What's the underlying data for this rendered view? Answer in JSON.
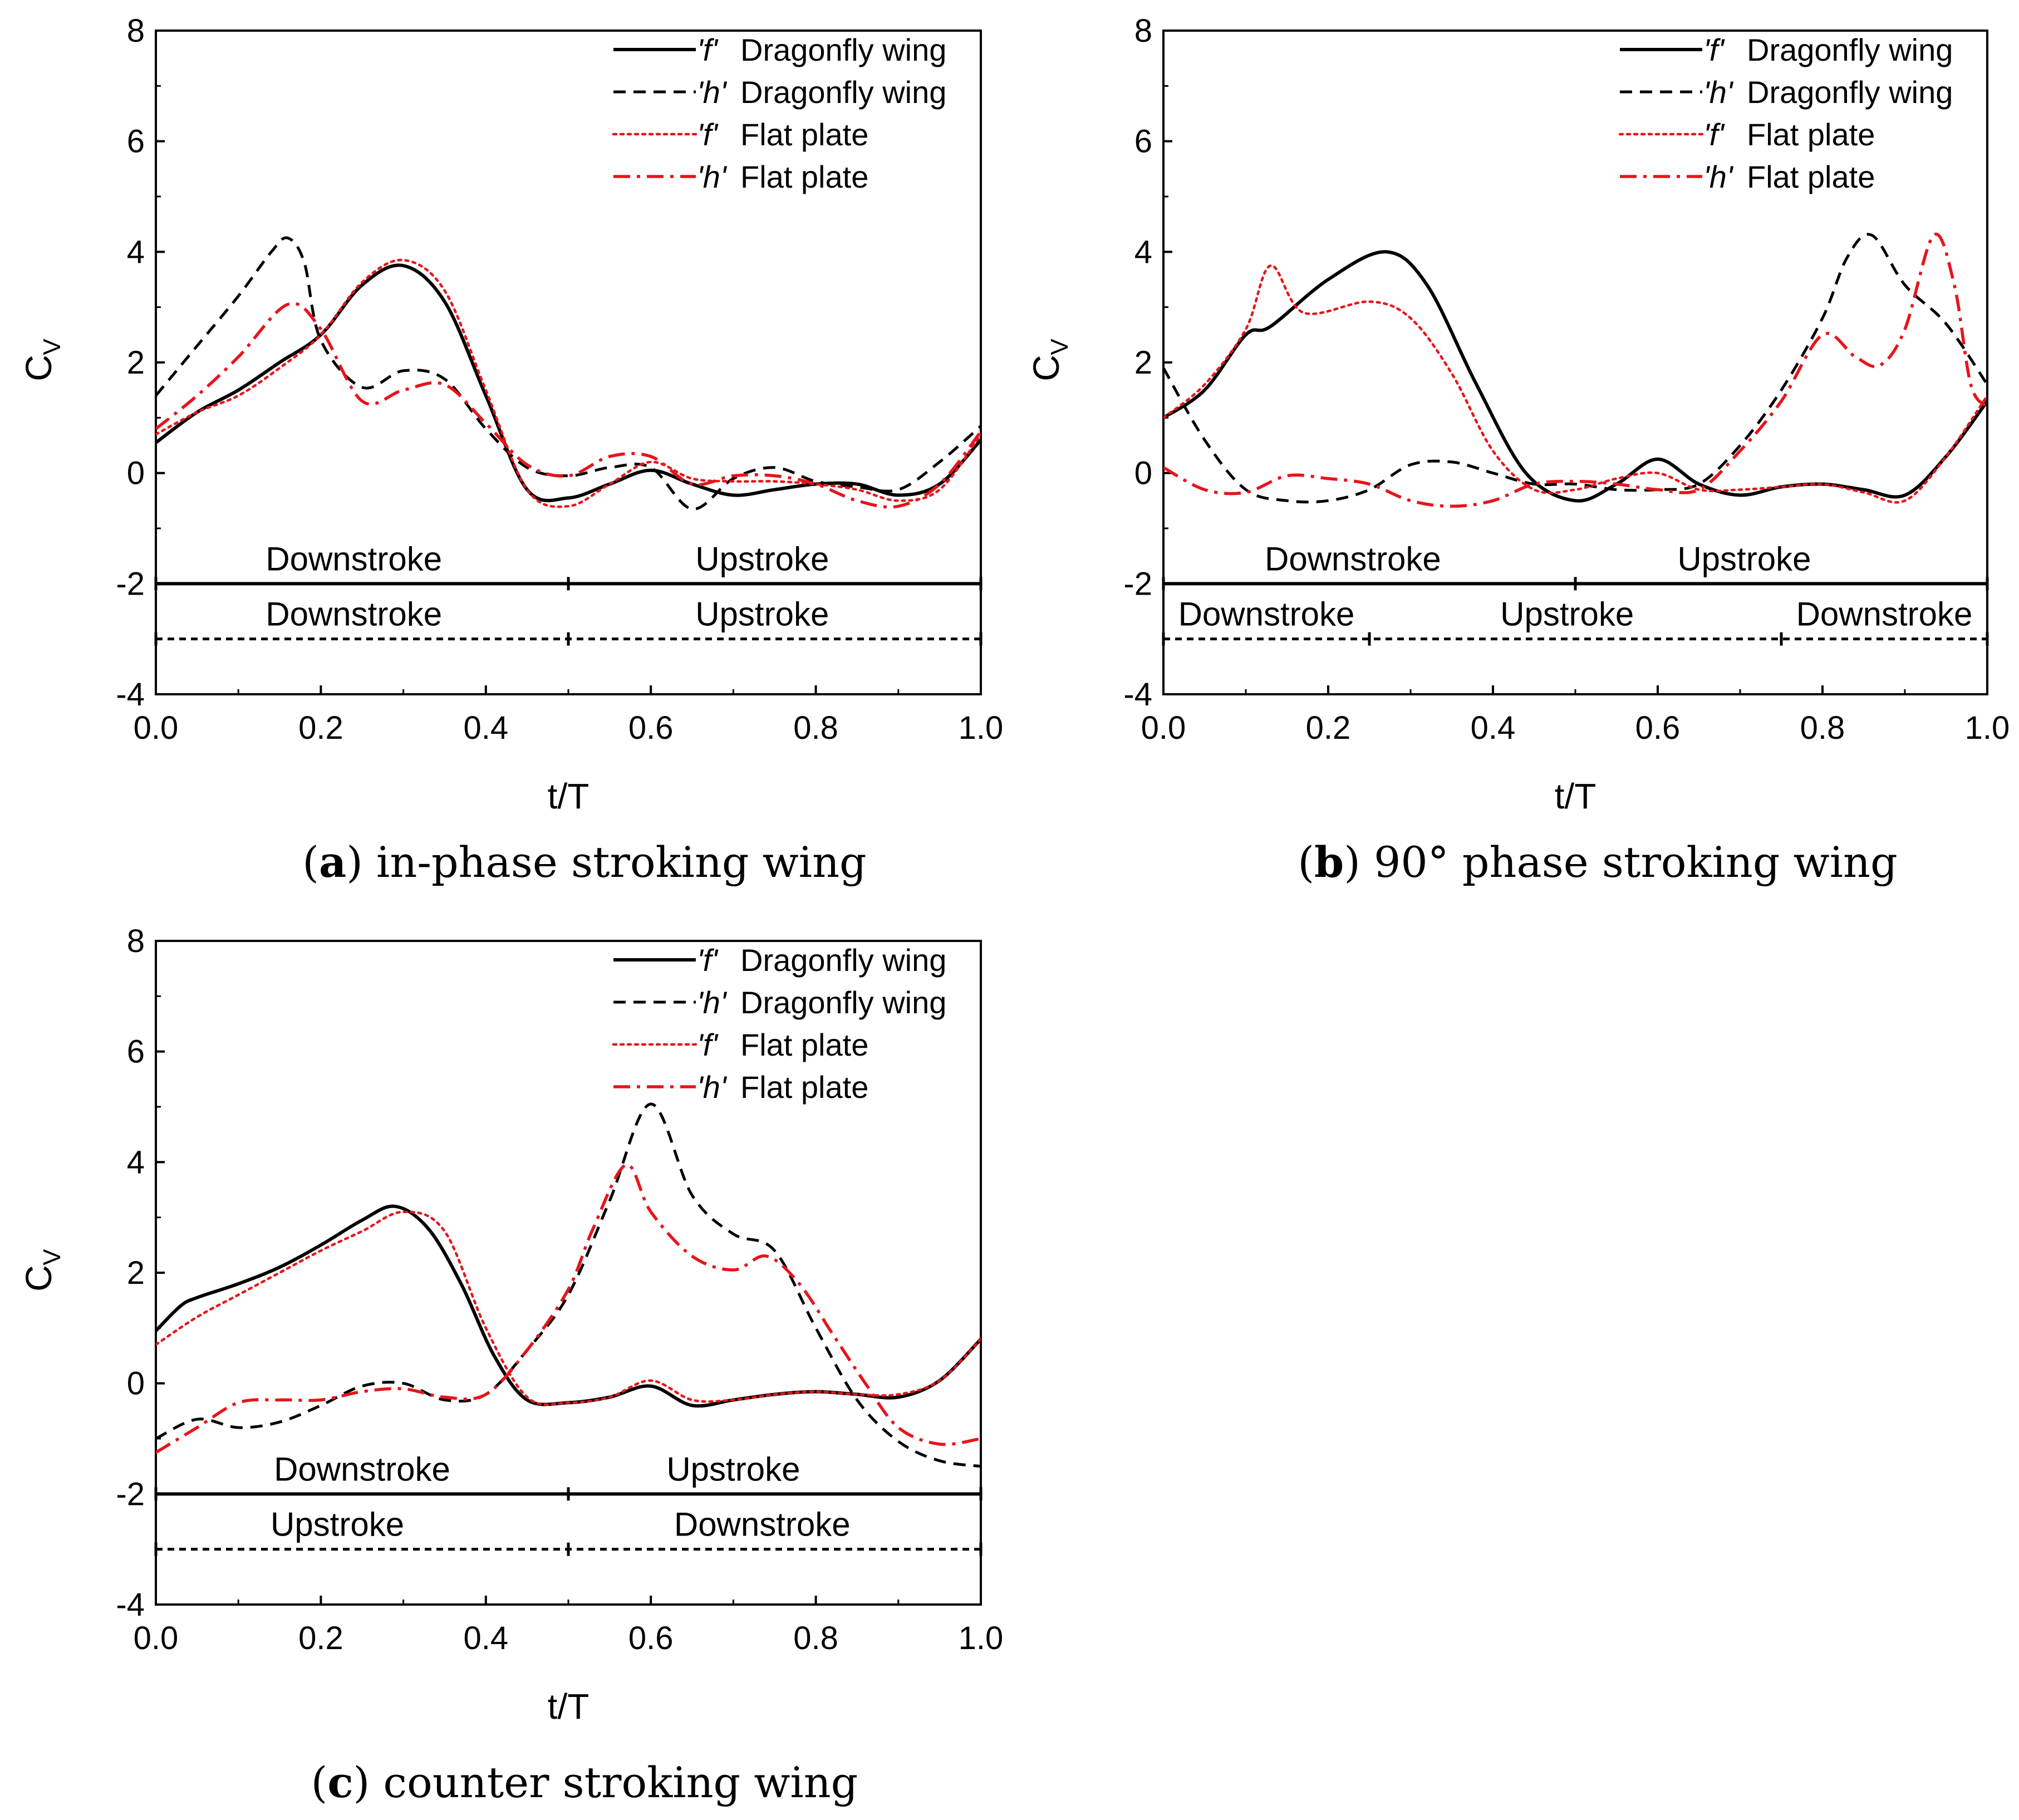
{
  "figure": {
    "colors": {
      "axis": "#000000",
      "dragonfly": "#000000",
      "flat": "#e8141b"
    }
  },
  "chart_data": [
    {
      "id": "a",
      "type": "line",
      "caption_letter": "a",
      "caption_rest": ") in-phase stroking wing",
      "xlabel": "t/T",
      "ylabel": "C",
      "ylabel_sub": "V",
      "xlim": [
        0,
        1
      ],
      "ylim": [
        -4,
        8
      ],
      "xticks": [
        "0.0",
        "0.2",
        "0.4",
        "0.6",
        "0.8",
        "1.0"
      ],
      "yticks": [
        "-4",
        "-2",
        "0",
        "2",
        "4",
        "6",
        "8"
      ],
      "legend": [
        {
          "q": "'f'",
          "label": "Dragonfly wing"
        },
        {
          "q": "'h'",
          "label": "Dragonfly wing"
        },
        {
          "q": "'f'",
          "label": "Flat plate"
        },
        {
          "q": "'h'",
          "label": "Flat plate"
        }
      ],
      "stroke_bars": [
        {
          "y": -2,
          "style": "solid",
          "ticks": [
            0,
            0.5,
            1
          ],
          "labels": [
            {
              "text": "Downstroke",
              "x": 0.24
            },
            {
              "text": "Upstroke",
              "x": 0.735
            }
          ]
        },
        {
          "y": -3,
          "style": "dashed",
          "ticks": [
            0,
            0.5,
            1
          ],
          "labels": [
            {
              "text": "Downstroke",
              "x": 0.24
            },
            {
              "text": "Upstroke",
              "x": 0.735
            }
          ]
        }
      ],
      "series": [
        {
          "name": "'f' Dragonfly wing",
          "style": "solid",
          "color": "black",
          "x": [
            0,
            0.05,
            0.1,
            0.15,
            0.2,
            0.25,
            0.3,
            0.35,
            0.4,
            0.45,
            0.5,
            0.55,
            0.6,
            0.65,
            0.7,
            0.75,
            0.8,
            0.85,
            0.9,
            0.95,
            1.0
          ],
          "y": [
            0.55,
            1.1,
            1.5,
            2.0,
            2.5,
            3.4,
            3.75,
            3.1,
            1.4,
            -0.3,
            -0.45,
            -0.2,
            0.05,
            -0.2,
            -0.4,
            -0.3,
            -0.2,
            -0.2,
            -0.4,
            -0.2,
            0.6
          ]
        },
        {
          "name": "'h' Dragonfly wing",
          "style": "dashed",
          "color": "black",
          "x": [
            0,
            0.05,
            0.1,
            0.14,
            0.16,
            0.18,
            0.2,
            0.25,
            0.3,
            0.35,
            0.4,
            0.45,
            0.5,
            0.55,
            0.6,
            0.65,
            0.7,
            0.75,
            0.8,
            0.85,
            0.9,
            0.95,
            1.0
          ],
          "y": [
            1.4,
            2.3,
            3.2,
            4.0,
            4.25,
            3.8,
            2.4,
            1.55,
            1.85,
            1.7,
            0.8,
            0.1,
            -0.05,
            0.1,
            0.1,
            -0.65,
            -0.1,
            0.1,
            -0.15,
            -0.25,
            -0.3,
            0.2,
            0.85
          ]
        },
        {
          "name": "'f' Flat plate",
          "style": "dotted",
          "color": "red",
          "x": [
            0,
            0.05,
            0.1,
            0.15,
            0.2,
            0.25,
            0.3,
            0.35,
            0.4,
            0.45,
            0.5,
            0.55,
            0.6,
            0.65,
            0.7,
            0.75,
            0.8,
            0.85,
            0.9,
            0.95,
            1.0
          ],
          "y": [
            0.7,
            1.1,
            1.4,
            1.9,
            2.5,
            3.45,
            3.85,
            3.3,
            1.5,
            -0.3,
            -0.6,
            -0.2,
            0.2,
            -0.1,
            -0.15,
            -0.15,
            -0.2,
            -0.3,
            -0.5,
            -0.3,
            0.7
          ]
        },
        {
          "name": "'h' Flat plate",
          "style": "dashdot",
          "color": "red",
          "x": [
            0,
            0.05,
            0.1,
            0.16,
            0.2,
            0.25,
            0.3,
            0.35,
            0.4,
            0.45,
            0.5,
            0.55,
            0.6,
            0.65,
            0.7,
            0.75,
            0.8,
            0.85,
            0.9,
            0.95,
            1.0
          ],
          "y": [
            0.8,
            1.4,
            2.1,
            3.05,
            2.6,
            1.3,
            1.5,
            1.6,
            0.9,
            0.15,
            -0.05,
            0.3,
            0.3,
            -0.2,
            -0.05,
            -0.05,
            -0.2,
            -0.5,
            -0.6,
            -0.2,
            0.75
          ]
        }
      ]
    },
    {
      "id": "b",
      "type": "line",
      "caption_letter": "b",
      "caption_rest": ") 90° phase stroking wing",
      "xlabel": "t/T",
      "ylabel": "C",
      "ylabel_sub": "V",
      "xlim": [
        0,
        1
      ],
      "ylim": [
        -4,
        8
      ],
      "xticks": [
        "0.0",
        "0.2",
        "0.4",
        "0.6",
        "0.8",
        "1.0"
      ],
      "yticks": [
        "-4",
        "-2",
        "0",
        "2",
        "4",
        "6",
        "8"
      ],
      "legend": [
        {
          "q": "'f'",
          "label": "Dragonfly wing"
        },
        {
          "q": "'h'",
          "label": "Dragonfly wing"
        },
        {
          "q": "'f'",
          "label": "Flat plate"
        },
        {
          "q": "'h'",
          "label": "Flat plate"
        }
      ],
      "stroke_bars": [
        {
          "y": -2,
          "style": "solid",
          "ticks": [
            0,
            0.5,
            1
          ],
          "labels": [
            {
              "text": "Downstroke",
              "x": 0.23
            },
            {
              "text": "Upstroke",
              "x": 0.705
            }
          ]
        },
        {
          "y": -3,
          "style": "dashed",
          "ticks": [
            0,
            0.25,
            0.75,
            1
          ],
          "labels": [
            {
              "text": "Downstroke",
              "x": 0.125
            },
            {
              "text": "Upstroke",
              "x": 0.49
            },
            {
              "text": "Downstroke",
              "x": 0.875
            }
          ]
        }
      ],
      "series": [
        {
          "name": "'f' Dragonfly wing",
          "style": "solid",
          "color": "black",
          "x": [
            0,
            0.05,
            0.1,
            0.13,
            0.2,
            0.27,
            0.32,
            0.38,
            0.44,
            0.5,
            0.55,
            0.6,
            0.65,
            0.7,
            0.75,
            0.8,
            0.85,
            0.9,
            0.95,
            1.0
          ],
          "y": [
            1.0,
            1.5,
            2.5,
            2.65,
            3.5,
            4.0,
            3.4,
            1.6,
            0.0,
            -0.5,
            -0.2,
            0.25,
            -0.2,
            -0.4,
            -0.25,
            -0.2,
            -0.3,
            -0.4,
            0.3,
            1.3
          ]
        },
        {
          "name": "'h' Dragonfly wing",
          "style": "dashed",
          "color": "black",
          "x": [
            0,
            0.05,
            0.1,
            0.15,
            0.2,
            0.25,
            0.3,
            0.35,
            0.4,
            0.45,
            0.5,
            0.55,
            0.6,
            0.65,
            0.7,
            0.75,
            0.8,
            0.83,
            0.86,
            0.9,
            0.95,
            1.0
          ],
          "y": [
            1.9,
            0.6,
            -0.3,
            -0.5,
            -0.5,
            -0.3,
            0.15,
            0.2,
            0.0,
            -0.2,
            -0.2,
            -0.3,
            -0.3,
            -0.2,
            0.5,
            1.5,
            2.8,
            3.9,
            4.3,
            3.4,
            2.7,
            1.6
          ]
        },
        {
          "name": "'f' Flat plate",
          "style": "dotted",
          "color": "red",
          "x": [
            0,
            0.05,
            0.1,
            0.13,
            0.17,
            0.25,
            0.3,
            0.35,
            0.4,
            0.45,
            0.5,
            0.55,
            0.6,
            0.65,
            0.7,
            0.75,
            0.8,
            0.85,
            0.9,
            0.95,
            1.0
          ],
          "y": [
            1.0,
            1.6,
            2.6,
            3.75,
            2.9,
            3.1,
            2.8,
            1.8,
            0.4,
            -0.3,
            -0.3,
            -0.1,
            0.0,
            -0.3,
            -0.3,
            -0.25,
            -0.2,
            -0.35,
            -0.5,
            0.3,
            1.4
          ]
        },
        {
          "name": "'h' Flat plate",
          "style": "dashdot",
          "color": "red",
          "x": [
            0,
            0.05,
            0.1,
            0.15,
            0.2,
            0.25,
            0.3,
            0.35,
            0.4,
            0.45,
            0.5,
            0.55,
            0.6,
            0.65,
            0.7,
            0.75,
            0.8,
            0.84,
            0.87,
            0.9,
            0.935,
            0.96,
            0.98,
            1.0
          ],
          "y": [
            0.1,
            -0.3,
            -0.35,
            -0.05,
            -0.1,
            -0.2,
            -0.5,
            -0.6,
            -0.5,
            -0.2,
            -0.15,
            -0.2,
            -0.3,
            -0.3,
            0.4,
            1.3,
            2.5,
            2.1,
            1.95,
            2.6,
            4.3,
            3.4,
            1.6,
            1.2
          ]
        }
      ]
    },
    {
      "id": "c",
      "type": "line",
      "caption_letter": "c",
      "caption_rest": ") counter stroking wing",
      "xlabel": "t/T",
      "ylabel": "C",
      "ylabel_sub": "V",
      "xlim": [
        0,
        1
      ],
      "ylim": [
        -4,
        8
      ],
      "xticks": [
        "0.0",
        "0.2",
        "0.4",
        "0.6",
        "0.8",
        "1.0"
      ],
      "yticks": [
        "-4",
        "-2",
        "0",
        "2",
        "4",
        "6",
        "8"
      ],
      "legend": [
        {
          "q": "'f'",
          "label": "Dragonfly wing"
        },
        {
          "q": "'h'",
          "label": "Dragonfly wing"
        },
        {
          "q": "'f'",
          "label": "Flat plate"
        },
        {
          "q": "'h'",
          "label": "Flat plate"
        }
      ],
      "stroke_bars": [
        {
          "y": -2,
          "style": "solid",
          "ticks": [
            0,
            0.5,
            1
          ],
          "labels": [
            {
              "text": "Downstroke",
              "x": 0.25
            },
            {
              "text": "Upstroke",
              "x": 0.7
            }
          ]
        },
        {
          "y": -3,
          "style": "dashed",
          "ticks": [
            0,
            0.5,
            1
          ],
          "labels": [
            {
              "text": "Upstroke",
              "x": 0.22
            },
            {
              "text": "Downstroke",
              "x": 0.735
            }
          ]
        }
      ],
      "series": [
        {
          "name": "'f' Dragonfly wing",
          "style": "solid",
          "color": "black",
          "x": [
            0,
            0.03,
            0.05,
            0.1,
            0.15,
            0.2,
            0.25,
            0.29,
            0.33,
            0.37,
            0.41,
            0.45,
            0.5,
            0.55,
            0.6,
            0.65,
            0.7,
            0.75,
            0.8,
            0.85,
            0.9,
            0.95,
            1.0
          ],
          "y": [
            0.95,
            1.4,
            1.55,
            1.8,
            2.1,
            2.5,
            2.95,
            3.2,
            2.8,
            1.8,
            0.5,
            -0.3,
            -0.35,
            -0.25,
            -0.05,
            -0.4,
            -0.3,
            -0.2,
            -0.15,
            -0.2,
            -0.25,
            0.05,
            0.8
          ]
        },
        {
          "name": "'h' Dragonfly wing",
          "style": "dashed",
          "color": "black",
          "x": [
            0,
            0.05,
            0.1,
            0.15,
            0.2,
            0.25,
            0.3,
            0.35,
            0.4,
            0.45,
            0.5,
            0.55,
            0.6,
            0.65,
            0.7,
            0.75,
            0.8,
            0.85,
            0.9,
            0.95,
            1.0
          ],
          "y": [
            -1.0,
            -0.65,
            -0.8,
            -0.7,
            -0.4,
            -0.05,
            0.0,
            -0.3,
            -0.2,
            0.6,
            1.6,
            3.3,
            5.05,
            3.4,
            2.7,
            2.4,
            1.0,
            -0.3,
            -1.05,
            -1.4,
            -1.5
          ]
        },
        {
          "name": "'f' Flat plate",
          "style": "dotted",
          "color": "red",
          "x": [
            0,
            0.05,
            0.1,
            0.15,
            0.2,
            0.25,
            0.3,
            0.35,
            0.4,
            0.45,
            0.5,
            0.55,
            0.6,
            0.65,
            0.7,
            0.75,
            0.8,
            0.85,
            0.9,
            0.95,
            1.0
          ],
          "y": [
            0.7,
            1.2,
            1.6,
            2.0,
            2.4,
            2.75,
            3.1,
            2.75,
            1.0,
            -0.25,
            -0.35,
            -0.25,
            0.05,
            -0.3,
            -0.3,
            -0.2,
            -0.15,
            -0.2,
            -0.2,
            0.05,
            0.8
          ]
        },
        {
          "name": "'h' Flat plate",
          "style": "dashdot",
          "color": "red",
          "x": [
            0,
            0.05,
            0.1,
            0.15,
            0.2,
            0.25,
            0.3,
            0.35,
            0.4,
            0.45,
            0.5,
            0.53,
            0.57,
            0.6,
            0.65,
            0.7,
            0.74,
            0.78,
            0.82,
            0.86,
            0.9,
            0.95,
            1.0
          ],
          "y": [
            -1.25,
            -0.8,
            -0.35,
            -0.3,
            -0.3,
            -0.15,
            -0.1,
            -0.25,
            -0.2,
            0.6,
            1.7,
            2.8,
            3.95,
            3.1,
            2.3,
            2.05,
            2.3,
            1.8,
            0.9,
            0.0,
            -0.8,
            -1.1,
            -1.0
          ]
        }
      ]
    }
  ]
}
